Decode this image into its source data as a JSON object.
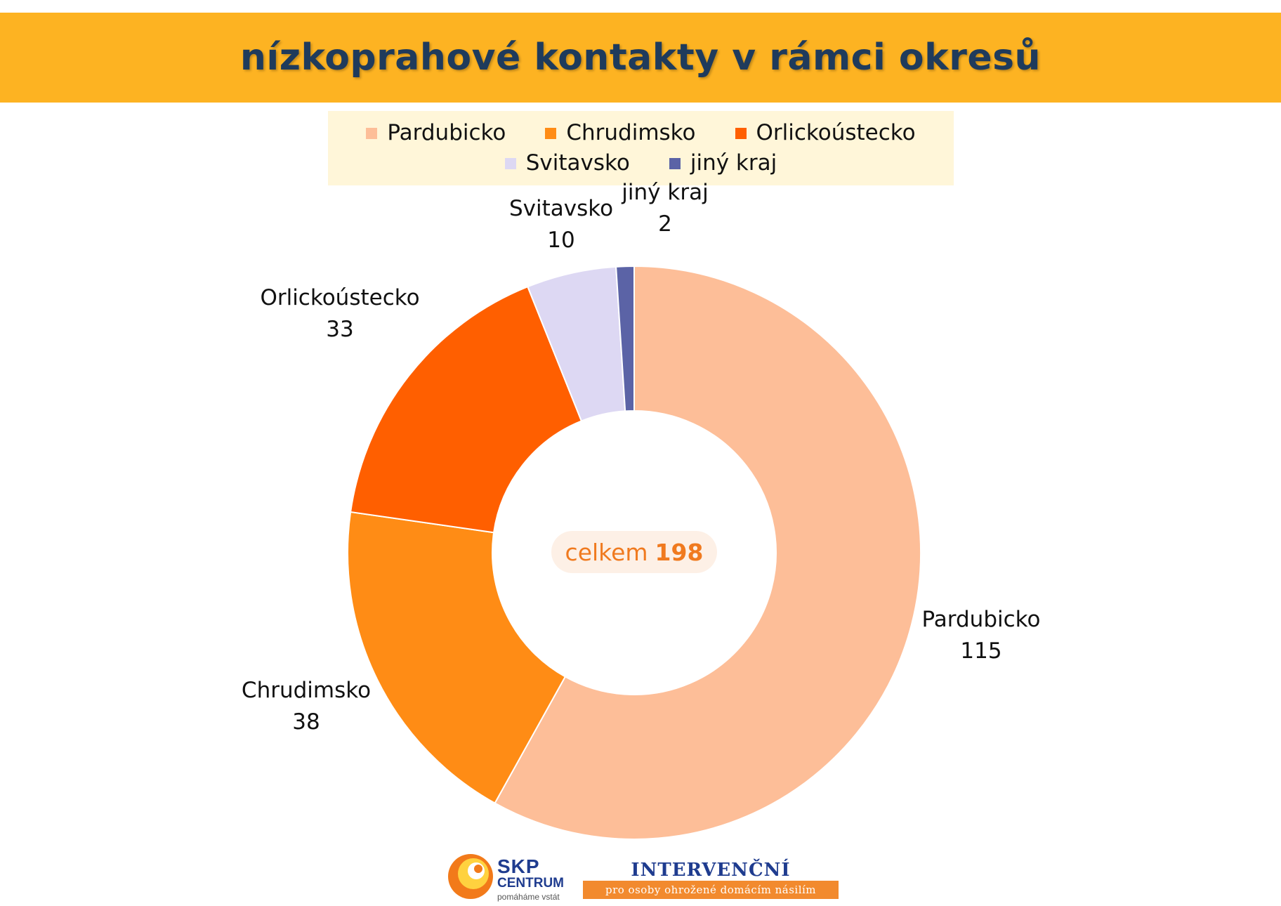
{
  "title": "nízkoprahové kontakty v rámci okresů",
  "chart_data": {
    "type": "pie",
    "donut": true,
    "start_angle_deg": 0,
    "direction": "clockwise",
    "legend_position": "top",
    "series": [
      {
        "name": "Pardubicko",
        "value": 115,
        "color": "#FDBE98"
      },
      {
        "name": "Chrudimsko",
        "value": 38,
        "color": "#FF8C15"
      },
      {
        "name": "Orlickoústecko",
        "value": 33,
        "color": "#FF5F00"
      },
      {
        "name": "Svitavsko",
        "value": 10,
        "color": "#DDD8F3"
      },
      {
        "name": "jiný kraj",
        "value": 2,
        "color": "#5B63A6"
      }
    ],
    "center_label": {
      "prefix": "celkem",
      "total": "198"
    }
  },
  "footer": {
    "skp": {
      "title": "SKP",
      "subtitle": "CENTRUM",
      "motto": "pomáháme vstát"
    },
    "ic": {
      "title": "INTERVENČNÍ CENTRUM",
      "subtitle": "pro osoby ohrožené domácím násilím"
    }
  }
}
